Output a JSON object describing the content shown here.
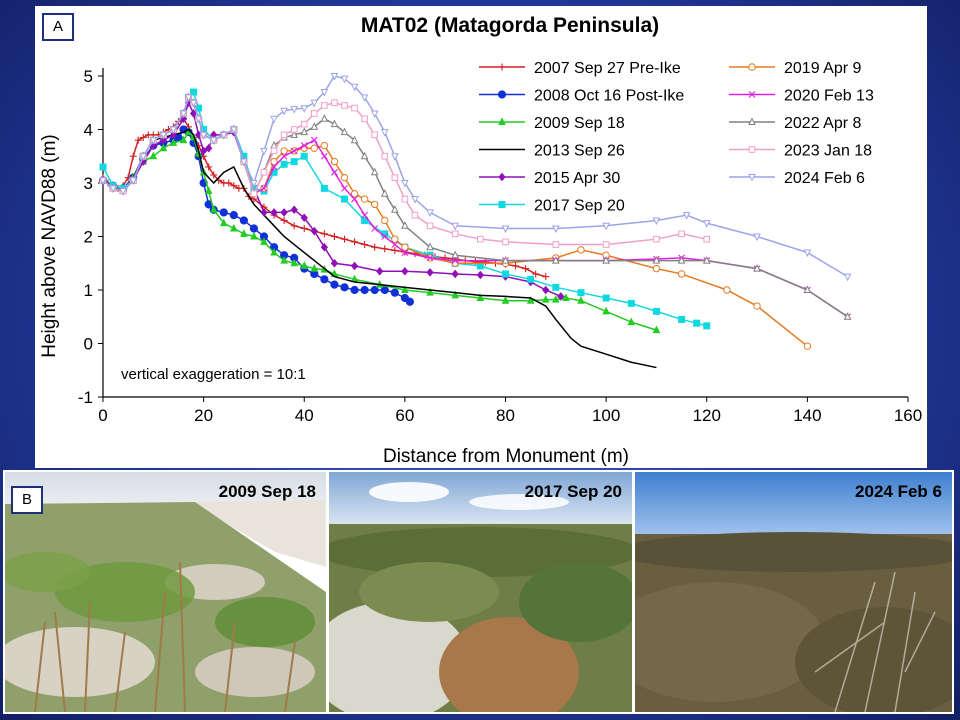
{
  "panel_a_label": "A",
  "panel_b_label": "B",
  "colors": {
    "background": "#2a3fa8",
    "axis": "#000000"
  },
  "chart_data": {
    "type": "line",
    "title": "MAT02 (Matagorda Peninsula)",
    "xlabel": "Distance from Monument (m)",
    "ylabel": "Height above NAVD88 (m)",
    "xlim": [
      0,
      160
    ],
    "ylim": [
      -1,
      5
    ],
    "xticks": [
      0,
      20,
      40,
      60,
      80,
      100,
      120,
      140,
      160
    ],
    "yticks": [
      -1,
      0,
      1,
      2,
      3,
      4,
      5
    ],
    "annotation": "vertical exaggeration = 10:1",
    "series": [
      {
        "name": "2007 Sep 27 Pre-Ike",
        "color": "#d42020",
        "marker": "plus",
        "x": [
          0,
          1,
          2,
          3,
          4,
          5,
          6,
          7,
          8,
          9,
          10,
          11,
          12,
          13,
          14,
          15,
          16,
          17,
          18,
          19,
          20,
          21,
          22,
          23,
          24,
          25,
          26,
          27,
          28,
          29,
          30,
          32,
          34,
          36,
          38,
          40,
          42,
          44,
          46,
          48,
          50,
          52,
          54,
          56,
          58,
          60,
          62,
          64,
          66,
          68,
          70,
          72,
          74,
          76,
          78,
          80,
          82,
          84,
          86,
          88
        ],
        "y": [
          3.1,
          3.0,
          2.95,
          2.9,
          2.95,
          3.1,
          3.5,
          3.8,
          3.85,
          3.9,
          3.9,
          3.9,
          3.95,
          4.0,
          4.05,
          4.15,
          4.2,
          4.05,
          3.85,
          3.7,
          3.5,
          3.3,
          3.15,
          3.05,
          3.0,
          3.0,
          2.95,
          2.9,
          2.9,
          2.75,
          2.7,
          2.55,
          2.4,
          2.3,
          2.2,
          2.15,
          2.1,
          2.05,
          2.0,
          1.95,
          1.9,
          1.85,
          1.8,
          1.77,
          1.74,
          1.71,
          1.68,
          1.65,
          1.62,
          1.6,
          1.58,
          1.55,
          1.53,
          1.52,
          1.5,
          1.48,
          1.45,
          1.4,
          1.3,
          1.25
        ]
      },
      {
        "name": "2008 Oct 16 Post-Ike",
        "color": "#1030d8",
        "marker": "circle-filled",
        "x": [
          0,
          2,
          4,
          6,
          8,
          10,
          12,
          14,
          15,
          16,
          17,
          18,
          19,
          20,
          21,
          22,
          24,
          26,
          28,
          30,
          32,
          34,
          36,
          38,
          40,
          42,
          44,
          46,
          48,
          50,
          52,
          54,
          56,
          58,
          60,
          61
        ],
        "y": [
          3.05,
          2.95,
          2.9,
          3.1,
          3.45,
          3.7,
          3.75,
          3.8,
          3.85,
          4.0,
          3.95,
          3.75,
          3.5,
          3.0,
          2.6,
          2.5,
          2.45,
          2.4,
          2.3,
          2.15,
          2.0,
          1.8,
          1.65,
          1.6,
          1.4,
          1.3,
          1.2,
          1.1,
          1.05,
          1.0,
          1.0,
          1.0,
          1.0,
          0.95,
          0.85,
          0.78
        ]
      },
      {
        "name": "2009 Sep 18",
        "color": "#22cc22",
        "marker": "triangle-filled",
        "x": [
          0,
          2,
          4,
          6,
          8,
          10,
          12,
          14,
          16,
          17,
          18,
          19,
          20,
          21,
          22,
          24,
          26,
          28,
          30,
          32,
          34,
          36,
          38,
          40,
          42,
          44,
          46,
          50,
          55,
          60,
          65,
          70,
          75,
          80,
          85,
          88,
          90,
          92,
          95,
          100,
          105,
          110
        ],
        "y": [
          3.05,
          2.9,
          2.85,
          3.1,
          3.4,
          3.5,
          3.65,
          3.75,
          3.8,
          3.95,
          3.85,
          3.55,
          3.2,
          2.85,
          2.5,
          2.25,
          2.15,
          2.05,
          2.0,
          1.9,
          1.7,
          1.55,
          1.5,
          1.45,
          1.4,
          1.38,
          1.3,
          1.2,
          1.1,
          1.0,
          0.95,
          0.9,
          0.85,
          0.8,
          0.8,
          0.82,
          0.82,
          0.85,
          0.8,
          0.6,
          0.4,
          0.25
        ]
      },
      {
        "name": "2013 Sep 26",
        "color": "#000000",
        "marker": "none",
        "x": [
          0,
          2,
          4,
          6,
          8,
          10,
          12,
          14,
          16,
          17,
          18,
          19,
          20,
          22,
          24,
          26,
          28,
          30,
          32,
          34,
          36,
          38,
          40,
          42,
          44,
          46,
          48,
          50,
          55,
          60,
          65,
          70,
          75,
          80,
          85,
          88,
          90,
          93,
          95,
          100,
          105,
          110
        ],
        "y": [
          3.05,
          2.9,
          2.85,
          3.1,
          3.5,
          3.8,
          3.85,
          3.9,
          3.95,
          4.0,
          3.9,
          3.6,
          3.2,
          3.0,
          3.2,
          3.3,
          2.9,
          2.6,
          2.4,
          2.2,
          2.0,
          1.85,
          1.7,
          1.55,
          1.4,
          1.25,
          1.2,
          1.15,
          1.1,
          1.05,
          1.0,
          0.95,
          0.9,
          0.88,
          0.85,
          0.7,
          0.45,
          0.1,
          -0.05,
          -0.2,
          -0.35,
          -0.45
        ]
      },
      {
        "name": "2015 Apr 30",
        "color": "#9010b8",
        "marker": "diamond-filled",
        "x": [
          0,
          2,
          4,
          6,
          8,
          10,
          12,
          14,
          16,
          17,
          18,
          19,
          20,
          21,
          22,
          24,
          26,
          28,
          30,
          32,
          34,
          36,
          38,
          40,
          42,
          44,
          46,
          50,
          55,
          60,
          65,
          70,
          75,
          80,
          85,
          88,
          91
        ],
        "y": [
          3.05,
          2.9,
          2.85,
          3.05,
          3.4,
          3.7,
          3.8,
          3.9,
          4.2,
          4.5,
          4.3,
          3.9,
          3.6,
          3.65,
          3.9,
          3.9,
          3.95,
          3.4,
          2.9,
          2.45,
          2.45,
          2.45,
          2.5,
          2.35,
          2.1,
          1.8,
          1.5,
          1.45,
          1.35,
          1.35,
          1.33,
          1.3,
          1.28,
          1.25,
          1.15,
          1.0,
          0.88
        ]
      },
      {
        "name": "2017 Sep 20",
        "color": "#10d8e0",
        "marker": "square-filled",
        "x": [
          0,
          2,
          4,
          6,
          8,
          10,
          12,
          14,
          16,
          17,
          18,
          19,
          20,
          22,
          24,
          26,
          28,
          30,
          32,
          34,
          36,
          38,
          40,
          44,
          48,
          52,
          56,
          60,
          65,
          70,
          75,
          80,
          85,
          90,
          95,
          100,
          105,
          110,
          115,
          118,
          120
        ],
        "y": [
          3.3,
          2.95,
          2.9,
          3.05,
          3.5,
          3.8,
          3.9,
          4.0,
          4.3,
          4.6,
          4.7,
          4.4,
          4.0,
          3.8,
          3.9,
          4.0,
          3.5,
          2.9,
          2.85,
          3.2,
          3.35,
          3.4,
          3.5,
          2.9,
          2.7,
          2.3,
          2.05,
          1.8,
          1.65,
          1.5,
          1.45,
          1.3,
          1.2,
          1.05,
          0.95,
          0.85,
          0.75,
          0.6,
          0.45,
          0.38,
          0.33
        ]
      },
      {
        "name": "2019 Apr 9",
        "color": "#e87a20",
        "marker": "circle-open",
        "x": [
          0,
          2,
          4,
          6,
          8,
          10,
          12,
          14,
          16,
          17,
          18,
          19,
          20,
          22,
          24,
          26,
          28,
          30,
          32,
          34,
          36,
          38,
          40,
          42,
          44,
          46,
          48,
          50,
          52,
          54,
          56,
          58,
          60,
          65,
          70,
          80,
          90,
          95,
          100,
          110,
          115,
          124,
          130,
          140
        ],
        "y": [
          3.05,
          2.9,
          2.85,
          3.05,
          3.5,
          3.8,
          3.9,
          4.0,
          4.3,
          4.6,
          4.5,
          4.2,
          3.9,
          3.8,
          3.9,
          4.0,
          3.4,
          2.8,
          2.9,
          3.4,
          3.6,
          3.6,
          3.65,
          3.65,
          3.7,
          3.4,
          3.1,
          2.8,
          2.7,
          2.6,
          2.3,
          1.95,
          1.8,
          1.6,
          1.5,
          1.5,
          1.6,
          1.75,
          1.65,
          1.4,
          1.3,
          1.0,
          0.7,
          -0.05
        ]
      },
      {
        "name": "2020 Feb 13",
        "color": "#e020e0",
        "marker": "x",
        "x": [
          0,
          2,
          4,
          6,
          8,
          10,
          12,
          14,
          16,
          17,
          18,
          19,
          20,
          22,
          24,
          26,
          28,
          30,
          32,
          34,
          36,
          38,
          40,
          42,
          44,
          46,
          48,
          50,
          52,
          54,
          56,
          58,
          60,
          65,
          70,
          80,
          90,
          100,
          110,
          115,
          120,
          130,
          140,
          148
        ],
        "y": [
          3.05,
          2.9,
          2.85,
          3.05,
          3.5,
          3.8,
          3.9,
          4.0,
          4.3,
          4.6,
          4.5,
          4.2,
          3.9,
          3.8,
          3.9,
          4.0,
          3.4,
          2.8,
          2.9,
          3.3,
          3.5,
          3.6,
          3.7,
          3.8,
          3.5,
          3.2,
          2.9,
          2.7,
          2.4,
          2.15,
          2.0,
          1.85,
          1.7,
          1.6,
          1.55,
          1.55,
          1.55,
          1.55,
          1.58,
          1.6,
          1.55,
          1.4,
          1.0,
          0.5
        ]
      },
      {
        "name": "2022 Apr 8",
        "color": "#808080",
        "marker": "triangle-open",
        "x": [
          0,
          2,
          4,
          6,
          8,
          10,
          12,
          14,
          16,
          17,
          18,
          19,
          20,
          22,
          24,
          26,
          28,
          30,
          32,
          34,
          36,
          38,
          40,
          42,
          44,
          46,
          48,
          50,
          52,
          54,
          56,
          58,
          60,
          65,
          70,
          80,
          90,
          100,
          110,
          115,
          120,
          130,
          140,
          148
        ],
        "y": [
          3.05,
          2.9,
          2.85,
          3.05,
          3.5,
          3.8,
          3.9,
          4.0,
          4.3,
          4.6,
          4.5,
          4.2,
          3.9,
          3.8,
          3.9,
          4.0,
          3.4,
          2.8,
          3.2,
          3.7,
          3.85,
          3.9,
          3.95,
          4.05,
          4.2,
          4.1,
          3.95,
          3.8,
          3.5,
          3.2,
          2.8,
          2.5,
          2.2,
          1.8,
          1.65,
          1.55,
          1.55,
          1.55,
          1.55,
          1.55,
          1.55,
          1.4,
          1.0,
          0.5
        ]
      },
      {
        "name": "2023 Jan 18",
        "color": "#f0a0c8",
        "marker": "square-open",
        "x": [
          0,
          2,
          4,
          6,
          8,
          10,
          12,
          14,
          16,
          17,
          18,
          19,
          20,
          22,
          24,
          26,
          28,
          30,
          32,
          34,
          36,
          38,
          40,
          42,
          44,
          46,
          48,
          50,
          52,
          54,
          56,
          58,
          60,
          62,
          65,
          70,
          75,
          80,
          90,
          100,
          110,
          115,
          120
        ],
        "y": [
          3.05,
          2.9,
          2.85,
          3.05,
          3.5,
          3.8,
          3.9,
          4.0,
          4.3,
          4.6,
          4.5,
          4.2,
          3.9,
          3.8,
          3.9,
          4.0,
          3.4,
          2.8,
          3.2,
          3.6,
          3.9,
          4.0,
          4.1,
          4.3,
          4.45,
          4.5,
          4.45,
          4.4,
          4.2,
          3.9,
          3.5,
          3.1,
          2.7,
          2.4,
          2.2,
          2.05,
          1.95,
          1.9,
          1.85,
          1.85,
          1.95,
          2.05,
          1.95
        ]
      },
      {
        "name": "2024 Feb 6",
        "color": "#9ba4e8",
        "marker": "inverted-triangle-open",
        "x": [
          0,
          2,
          4,
          6,
          8,
          10,
          12,
          14,
          16,
          17,
          18,
          19,
          20,
          22,
          24,
          26,
          28,
          30,
          32,
          34,
          36,
          38,
          40,
          42,
          44,
          46,
          48,
          50,
          52,
          54,
          56,
          58,
          60,
          62,
          65,
          70,
          80,
          90,
          100,
          110,
          116,
          120,
          130,
          140,
          148
        ],
        "y": [
          3.05,
          2.9,
          2.85,
          3.05,
          3.5,
          3.8,
          3.9,
          4.0,
          4.3,
          4.6,
          4.5,
          4.2,
          3.9,
          3.8,
          3.9,
          4.0,
          3.4,
          3.0,
          3.6,
          4.2,
          4.35,
          4.38,
          4.4,
          4.5,
          4.7,
          5.0,
          4.95,
          4.8,
          4.6,
          4.3,
          3.95,
          3.5,
          3.0,
          2.7,
          2.45,
          2.2,
          2.15,
          2.15,
          2.2,
          2.3,
          2.4,
          2.25,
          2.0,
          1.7,
          1.25
        ]
      }
    ]
  },
  "photos": [
    {
      "label": "2009 Sep 18"
    },
    {
      "label": "2017 Sep 20"
    },
    {
      "label": "2024 Feb 6"
    }
  ]
}
